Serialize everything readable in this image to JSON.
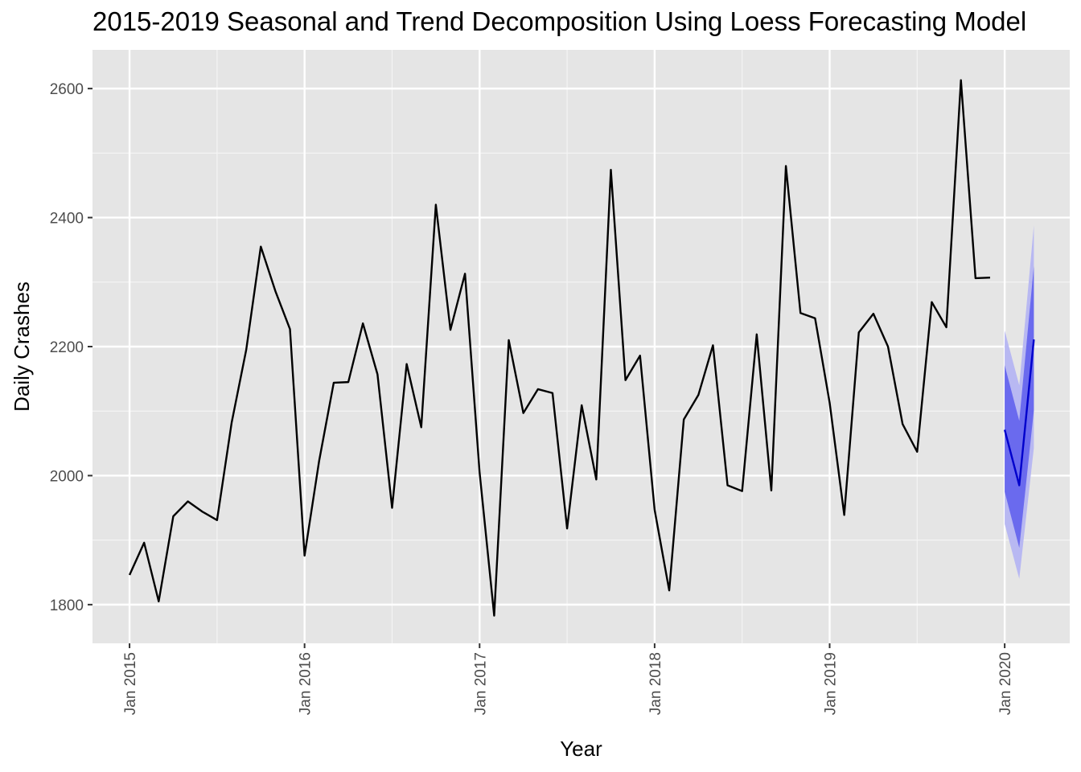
{
  "chart_data": {
    "type": "line",
    "title": "2015-2019 Seasonal and Trend Decomposition Using Loess Forecasting Model",
    "xlabel": "Year",
    "ylabel": "Daily Crashes",
    "ylim": [
      1740,
      2660
    ],
    "xlim": [
      "2014-10-15",
      "2020-05-15"
    ],
    "y_ticks": [
      1800,
      2000,
      2200,
      2400,
      2600
    ],
    "x_tick_labels": [
      "Jan 2015",
      "Jan 2016",
      "Jan 2017",
      "Jan 2018",
      "Jan 2019",
      "Jan 2020"
    ],
    "grid": true,
    "background": "#e5e5e5",
    "series": [
      {
        "color": "#000000",
        "x": [
          "2015-01",
          "2015-02",
          "2015-03",
          "2015-04",
          "2015-05",
          "2015-06",
          "2015-07",
          "2015-08",
          "2015-09",
          "2015-10",
          "2015-11",
          "2015-12",
          "2016-01",
          "2016-02",
          "2016-03",
          "2016-04",
          "2016-05",
          "2016-06",
          "2016-07",
          "2016-08",
          "2016-09",
          "2016-10",
          "2016-11",
          "2016-12",
          "2017-01",
          "2017-02",
          "2017-03",
          "2017-04",
          "2017-05",
          "2017-06",
          "2017-07",
          "2017-08",
          "2017-09",
          "2017-10",
          "2017-11",
          "2017-12",
          "2018-01",
          "2018-02",
          "2018-03",
          "2018-04",
          "2018-05",
          "2018-06",
          "2018-07",
          "2018-08",
          "2018-09",
          "2018-10",
          "2018-11",
          "2018-12",
          "2019-01",
          "2019-02",
          "2019-03",
          "2019-04",
          "2019-05",
          "2019-06",
          "2019-07",
          "2019-08",
          "2019-09",
          "2019-10",
          "2019-11",
          "2019-12"
        ],
        "values": [
          1846,
          1896,
          1805,
          1937,
          1960,
          1944,
          1931,
          2082,
          2195,
          2355,
          2286,
          2227,
          1876,
          2023,
          2144,
          2145,
          2236,
          2157,
          1950,
          2173,
          2075,
          2420,
          2226,
          2313,
          2005,
          1783,
          2210,
          2097,
          2134,
          2128,
          1918,
          2109,
          1994,
          2474,
          2148,
          2186,
          1947,
          1822,
          2087,
          2125,
          2202,
          1985,
          1976,
          2219,
          1977,
          2480,
          2252,
          2244,
          2113,
          1939,
          2222,
          2251,
          2200,
          2080,
          2037,
          2269,
          2230,
          2613,
          2306,
          2307
        ]
      },
      {
        "color": "#0000cc",
        "forecast": true,
        "x": [
          "2020-01",
          "2020-02",
          "2020-03"
        ],
        "values": [
          2071,
          1985,
          2211
        ],
        "lower_80": [
          1975,
          1888,
          2101
        ],
        "upper_80": [
          2171,
          2085,
          2325
        ],
        "lower_95": [
          1925,
          1840,
          2043
        ],
        "upper_95": [
          2225,
          2140,
          2388
        ],
        "band_80_color": "#6a6aee",
        "band_95_color": "#b8b8f2"
      }
    ]
  }
}
